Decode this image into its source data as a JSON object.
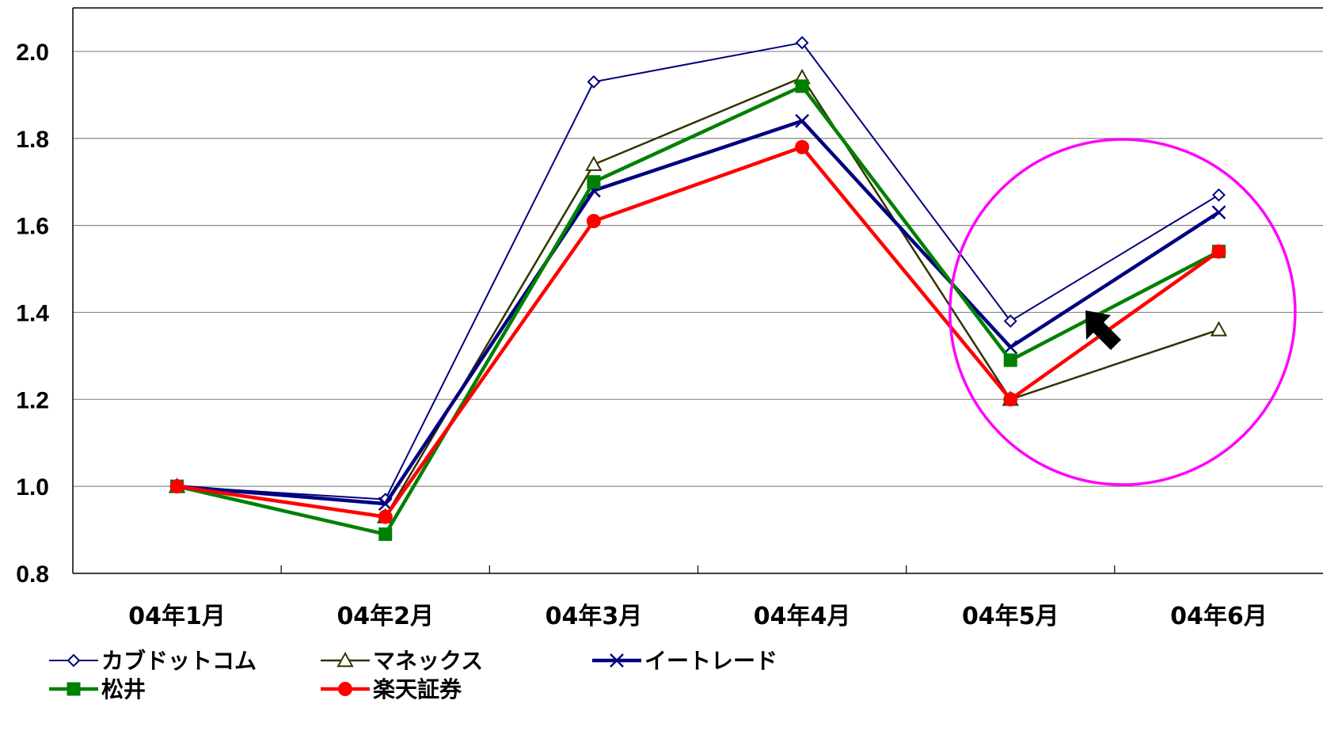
{
  "chart_data": {
    "type": "line",
    "categories": [
      "04年1月",
      "04年2月",
      "04年3月",
      "04年4月",
      "04年5月",
      "04年6月"
    ],
    "ylim": [
      0.8,
      2.1
    ],
    "yticks": [
      "0.8",
      "1.0",
      "1.2",
      "1.4",
      "1.6",
      "1.8",
      "2.0"
    ],
    "grid": "horizontal",
    "legend_position": "bottom",
    "series": [
      {
        "name": "カブドットコム",
        "values": [
          1.0,
          0.97,
          1.93,
          2.02,
          1.38,
          1.67
        ],
        "color": "#000080",
        "marker": "open-diamond"
      },
      {
        "name": "マネックス",
        "values": [
          1.0,
          0.93,
          1.74,
          1.94,
          1.2,
          1.36
        ],
        "color": "#333300",
        "marker": "open-triangle"
      },
      {
        "name": "イートレード",
        "values": [
          1.0,
          0.96,
          1.68,
          1.84,
          1.32,
          1.63
        ],
        "color": "#000080",
        "marker": "x"
      },
      {
        "name": "松井",
        "values": [
          1.0,
          0.89,
          1.7,
          1.92,
          1.29,
          1.54
        ],
        "color": "#008000",
        "marker": "filled-square"
      },
      {
        "name": "楽天証券",
        "values": [
          1.0,
          0.93,
          1.61,
          1.78,
          1.2,
          1.54
        ],
        "color": "#ff0000",
        "marker": "filled-circle"
      }
    ],
    "annotations": [
      {
        "kind": "circle-highlight",
        "color": "#ff00ff",
        "category_range": [
          "04年5月",
          "04年6月"
        ]
      },
      {
        "kind": "arrow",
        "color": "#000000"
      }
    ]
  }
}
